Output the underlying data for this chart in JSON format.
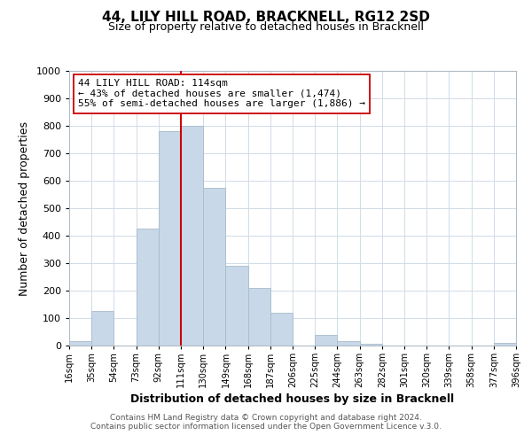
{
  "title": "44, LILY HILL ROAD, BRACKNELL, RG12 2SD",
  "subtitle": "Size of property relative to detached houses in Bracknell",
  "xlabel": "Distribution of detached houses by size in Bracknell",
  "ylabel": "Number of detached properties",
  "bar_color": "#c8d8e8",
  "bar_edge_color": "#a8bccb",
  "background_color": "#ffffff",
  "grid_color": "#d0dce8",
  "vline_x": 111,
  "vline_color": "#cc0000",
  "bin_edges": [
    16,
    35,
    54,
    73,
    92,
    111,
    130,
    149,
    168,
    187,
    206,
    225,
    244,
    263,
    282,
    301,
    320,
    339,
    358,
    377,
    396
  ],
  "bar_heights": [
    15,
    125,
    0,
    425,
    780,
    800,
    575,
    290,
    210,
    120,
    0,
    40,
    15,
    5,
    0,
    0,
    0,
    0,
    0,
    10
  ],
  "tick_labels": [
    "16sqm",
    "35sqm",
    "54sqm",
    "73sqm",
    "92sqm",
    "111sqm",
    "130sqm",
    "149sqm",
    "168sqm",
    "187sqm",
    "206sqm",
    "225sqm",
    "244sqm",
    "263sqm",
    "282sqm",
    "301sqm",
    "320sqm",
    "339sqm",
    "358sqm",
    "377sqm",
    "396sqm"
  ],
  "ylim": [
    0,
    1000
  ],
  "yticks": [
    0,
    100,
    200,
    300,
    400,
    500,
    600,
    700,
    800,
    900,
    1000
  ],
  "annotation_title": "44 LILY HILL ROAD: 114sqm",
  "annotation_line1": "← 43% of detached houses are smaller (1,474)",
  "annotation_line2": "55% of semi-detached houses are larger (1,886) →",
  "footnote1": "Contains HM Land Registry data © Crown copyright and database right 2024.",
  "footnote2": "Contains public sector information licensed under the Open Government Licence v.3.0."
}
